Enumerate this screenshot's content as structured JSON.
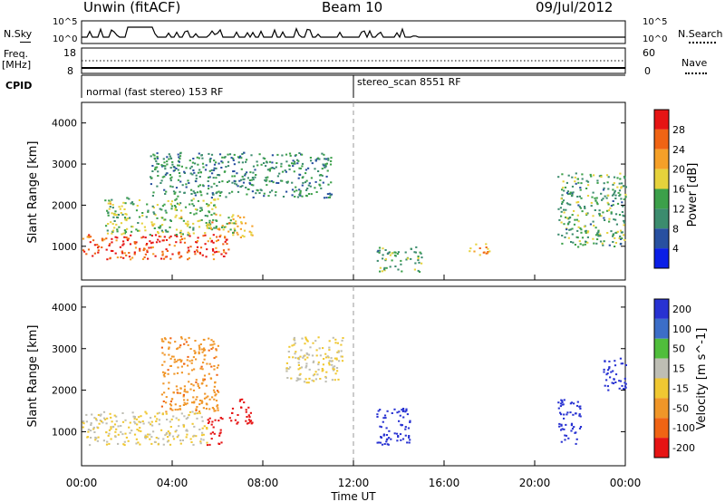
{
  "header": {
    "station": "Unwin (fitACF)",
    "beam": "Beam 10",
    "date": "09/Jul/2012"
  },
  "panels": {
    "nsky_label": "N.Sky",
    "nsky_ticks": [
      "10^5",
      "10^0"
    ],
    "nsearch_label": "N.Search",
    "nsearch_ticks": [
      "10^5",
      "10^0"
    ],
    "freq_label": "Freq.",
    "freq_unit": "[MHz]",
    "freq_ticks": [
      "18",
      "8"
    ],
    "nave_label": "Nave",
    "nave_ticks": [
      "60",
      "0"
    ],
    "cpid_label": "CPID",
    "cpid_segments": [
      "normal (fast stereo) 153 RF",
      "stereo_scan 8551 RF"
    ]
  },
  "colors": {
    "power": [
      "#0a1ee6",
      "#2850a0",
      "#3c8c6e",
      "#3ca04a",
      "#e6d23c",
      "#f5a028",
      "#f06414",
      "#e61414"
    ],
    "velocity": [
      "#2832d2",
      "#3c6ec8",
      "#50be3c",
      "#bebeb4",
      "#f0c832",
      "#f09628",
      "#f06414",
      "#e61414"
    ]
  },
  "chart_data": [
    {
      "type": "heatmap",
      "title": "Power",
      "ylabel": "Slant Range [km]",
      "xlabel": "Time UT",
      "x_ticks": [
        "00:00",
        "04:00",
        "08:00",
        "12:00",
        "16:00",
        "20:00",
        "00:00"
      ],
      "xlim": [
        0,
        24
      ],
      "ylim": [
        180,
        4500
      ],
      "y_ticks": [
        1000,
        2000,
        3000,
        4000
      ],
      "colorbar_label": "Power [dB]",
      "colorbar_ticks": [
        4,
        8,
        12,
        16,
        20,
        24,
        28
      ],
      "colorbar_range": [
        0,
        30
      ],
      "annotation": "dashed line at 12:00 (CPID change)",
      "echo_regions": [
        {
          "t": [
            0.0,
            6.5
          ],
          "r": [
            700,
            1300
          ],
          "value": 26
        },
        {
          "t": [
            1.0,
            6.0
          ],
          "r": [
            1300,
            2200
          ],
          "value": 14
        },
        {
          "t": [
            3.0,
            11.0
          ],
          "r": [
            2200,
            3300
          ],
          "value": 10
        },
        {
          "t": [
            5.5,
            7.5
          ],
          "r": [
            1200,
            1800
          ],
          "value": 18
        },
        {
          "t": [
            13.0,
            15.0
          ],
          "r": [
            400,
            1000
          ],
          "value": 12
        },
        {
          "t": [
            17.0,
            18.0
          ],
          "r": [
            800,
            1100
          ],
          "value": 20
        },
        {
          "t": [
            21.0,
            24.0
          ],
          "r": [
            1000,
            2800
          ],
          "value": 12
        }
      ]
    },
    {
      "type": "heatmap",
      "title": "Velocity",
      "ylabel": "Slant Range [km]",
      "xlabel": "Time UT",
      "x_ticks": [
        "00:00",
        "04:00",
        "08:00",
        "12:00",
        "16:00",
        "20:00",
        "00:00"
      ],
      "xlim": [
        0,
        24
      ],
      "ylim": [
        180,
        4500
      ],
      "y_ticks": [
        1000,
        2000,
        3000,
        4000
      ],
      "colorbar_label": "Velocity [m s^-1]",
      "colorbar_ticks": [
        200,
        100,
        50,
        15,
        -15,
        -50,
        -100,
        -200
      ],
      "echo_regions": [
        {
          "t": [
            0.0,
            5.5
          ],
          "r": [
            700,
            1500
          ],
          "value": 0
        },
        {
          "t": [
            5.5,
            6.2
          ],
          "r": [
            700,
            1400
          ],
          "value": -200
        },
        {
          "t": [
            6.5,
            7.5
          ],
          "r": [
            1200,
            1800
          ],
          "value": -200
        },
        {
          "t": [
            3.5,
            6.0
          ],
          "r": [
            1500,
            3300
          ],
          "value": -60
        },
        {
          "t": [
            9.0,
            11.5
          ],
          "r": [
            2200,
            3300
          ],
          "value": 0
        },
        {
          "t": [
            13.0,
            14.5
          ],
          "r": [
            700,
            1600
          ],
          "value": 200
        },
        {
          "t": [
            21.0,
            22.0
          ],
          "r": [
            700,
            1800
          ],
          "value": 200
        },
        {
          "t": [
            23.0,
            24.0
          ],
          "r": [
            2000,
            2800
          ],
          "value": 200
        }
      ]
    }
  ]
}
